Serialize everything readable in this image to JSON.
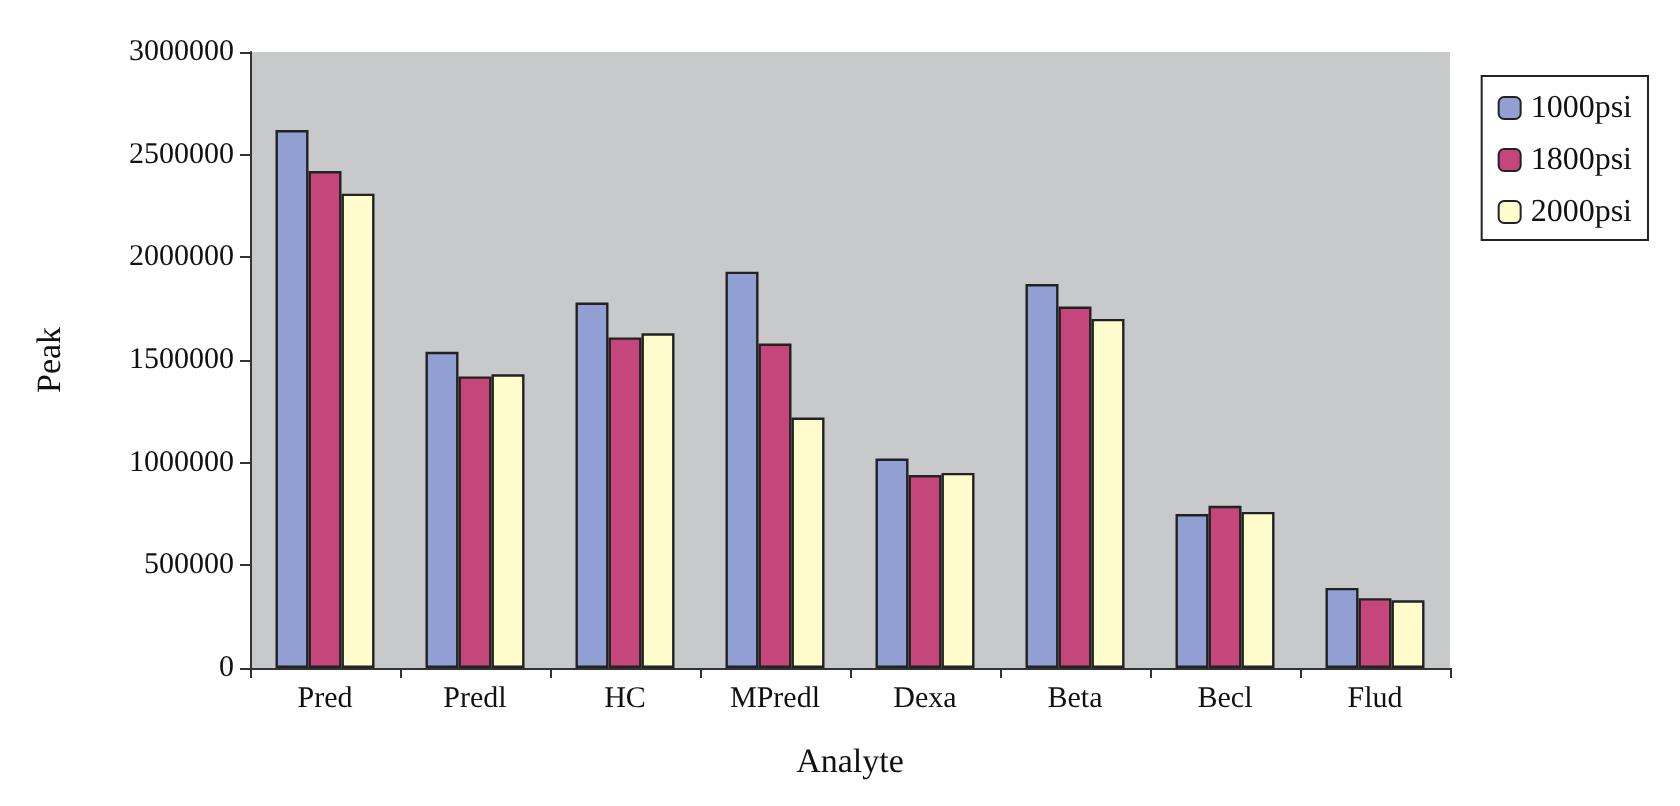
{
  "chart_data": {
    "type": "bar",
    "xlabel": "Analyte",
    "ylabel": "Peak",
    "categories": [
      "Pred",
      "Predl",
      "HC",
      "MPredl",
      "Dexa",
      "Beta",
      "Becl",
      "Flud"
    ],
    "series": [
      {
        "name": "1000psi",
        "color": "#919fd2",
        "values": [
          2620000,
          1540000,
          1780000,
          1930000,
          1020000,
          1870000,
          750000,
          390000
        ]
      },
      {
        "name": "1800psi",
        "color": "#c4467a",
        "values": [
          2420000,
          1420000,
          1610000,
          1580000,
          940000,
          1760000,
          790000,
          340000
        ]
      },
      {
        "name": "2000psi",
        "color": "#fefbcc",
        "values": [
          2310000,
          1430000,
          1630000,
          1220000,
          950000,
          1700000,
          760000,
          330000
        ]
      }
    ],
    "ylim": [
      0,
      3000000
    ],
    "yticks": [
      0,
      500000,
      1000000,
      1500000,
      2000000,
      2500000,
      3000000
    ],
    "grid": false,
    "legend": "right"
  }
}
